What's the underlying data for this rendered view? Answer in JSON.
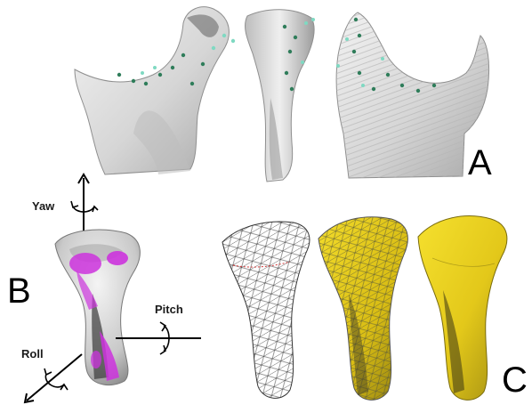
{
  "panels": {
    "a": {
      "letter": "A"
    },
    "b": {
      "letter": "B",
      "axes": {
        "yaw": "Yaw",
        "pitch": "Pitch",
        "roll": "Roll"
      }
    },
    "c": {
      "letter": "C"
    }
  },
  "colors": {
    "bone": "#d9d9d9",
    "bone_shade": "#9a9a9a",
    "landmark": "#2f7d5a",
    "landmark_glow": "#7fd9c2",
    "highlight": "#cc33dd",
    "mesh_fill": "#e6cc1f",
    "wireframe": "#333333"
  }
}
